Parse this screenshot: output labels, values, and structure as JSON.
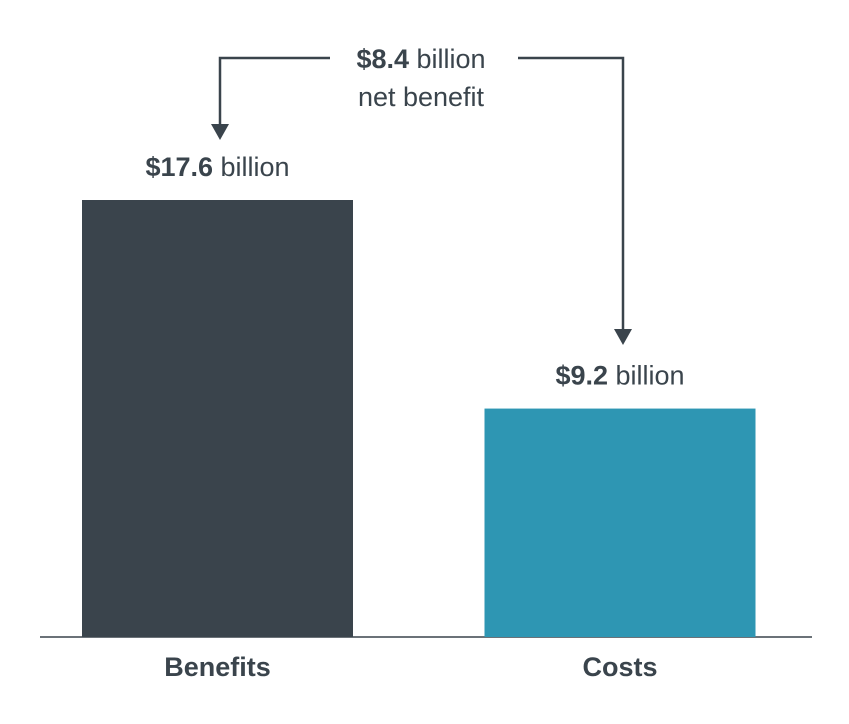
{
  "chart_data": {
    "type": "bar",
    "categories": [
      "Benefits",
      "Costs"
    ],
    "values": [
      17.6,
      9.2
    ],
    "value_labels": [
      "$17.6 billion",
      "$9.2 billion"
    ],
    "colors": [
      "#3a444c",
      "#2e96b3"
    ],
    "annotation": [
      "$8.4 billion",
      "net benefit"
    ]
  }
}
